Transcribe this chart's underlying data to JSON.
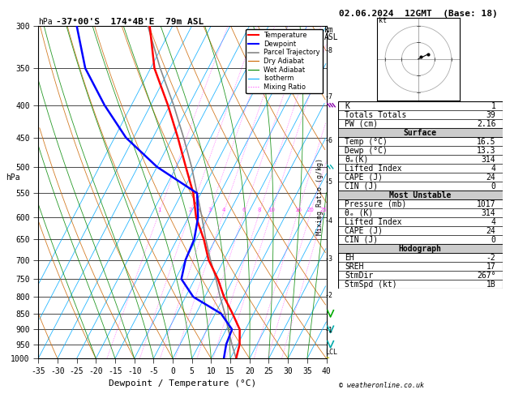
{
  "title_left": "-37°00'S  174°4B'E  79m ASL",
  "title_right": "02.06.2024  12GMT  (Base: 18)",
  "xlabel": "Dewpoint / Temperature (°C)",
  "ylabel_left": "hPa",
  "ylabel_right": "Mixing Ratio (g/kg)",
  "pressure_levels": [
    300,
    350,
    400,
    450,
    500,
    550,
    600,
    650,
    700,
    750,
    800,
    850,
    900,
    950,
    1000
  ],
  "xmin": -35,
  "xmax": 40,
  "temp_color": "#ff0000",
  "dewp_color": "#0000ff",
  "parcel_color": "#888888",
  "dry_adiabat_color": "#cc6600",
  "wet_adiabat_color": "#008800",
  "isotherm_color": "#00aaff",
  "mixing_ratio_color": "#ff44ff",
  "background_color": "#ffffff",
  "stats_K": "1",
  "stats_TT": "39",
  "stats_PW": "2.16",
  "surf_temp": "16.5",
  "surf_dewp": "13.3",
  "surf_thetae": "314",
  "surf_li": "4",
  "surf_cape": "24",
  "surf_cin": "0",
  "mu_pressure": "1017",
  "mu_thetae": "314",
  "mu_li": "4",
  "mu_cape": "24",
  "mu_cin": "0",
  "hodo_EH": "-2",
  "hodo_SREH": "17",
  "hodo_StmDir": "267°",
  "hodo_StmSpd": "1B",
  "mixing_ratio_values": [
    1,
    2,
    3,
    4,
    6,
    8,
    10,
    16,
    20,
    25
  ],
  "km_labels": [
    8,
    7,
    6,
    5,
    4,
    3,
    2,
    1
  ],
  "km_pressures": [
    328,
    388,
    455,
    528,
    608,
    697,
    795,
    902
  ],
  "skew": 45,
  "temp_profile_p": [
    1000,
    950,
    900,
    850,
    800,
    750,
    700,
    650,
    600,
    550,
    500,
    450,
    400,
    350,
    300
  ],
  "temp_profile_T": [
    16.5,
    15.5,
    13.5,
    9.5,
    5.0,
    1.0,
    -4.0,
    -8.0,
    -13.0,
    -17.0,
    -22.5,
    -28.5,
    -35.5,
    -44.0,
    -51.0
  ],
  "dewp_profile_p": [
    1000,
    950,
    900,
    850,
    800,
    750,
    700,
    650,
    600,
    550,
    500,
    450,
    400,
    350,
    300
  ],
  "dewp_profile_T": [
    13.3,
    12.0,
    11.5,
    6.5,
    -3.0,
    -8.5,
    -10.0,
    -10.5,
    -12.5,
    -16.0,
    -30.0,
    -42.0,
    -52.0,
    -62.0,
    -70.0
  ],
  "parcel_p": [
    1000,
    950,
    900,
    850,
    800,
    750,
    700,
    650,
    600,
    550,
    500,
    450,
    400,
    350,
    300
  ],
  "parcel_T": [
    16.5,
    13.5,
    10.5,
    7.5,
    4.0,
    0.5,
    -3.5,
    -7.5,
    -11.5,
    -16.0,
    -21.0,
    -27.0,
    -34.0,
    -42.5,
    -51.5
  ]
}
